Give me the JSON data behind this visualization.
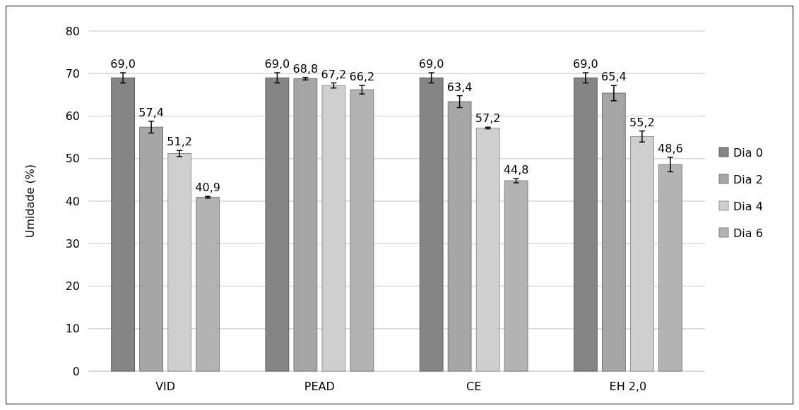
{
  "chart_data": {
    "type": "bar",
    "ylabel": "Umidade (%)",
    "categories": [
      "VID",
      "PEAD",
      "CE",
      "EH 2,0"
    ],
    "series": [
      {
        "name": "Dia 0",
        "color": "#858585",
        "values": [
          69.0,
          69.0,
          69.0,
          69.0
        ],
        "errors": [
          1.2,
          1.2,
          1.2,
          1.2
        ],
        "value_labels": [
          "69,0",
          "69,0",
          "69,0",
          "69,0"
        ]
      },
      {
        "name": "Dia 2",
        "color": "#a6a6a6",
        "values": [
          57.4,
          68.8,
          63.4,
          65.4
        ],
        "errors": [
          1.4,
          0.3,
          1.4,
          1.8
        ],
        "value_labels": [
          "57,4",
          "68,8",
          "63,4",
          "65,4"
        ]
      },
      {
        "name": "Dia 4",
        "color": "#cfcfcf",
        "values": [
          51.2,
          67.2,
          57.2,
          55.2
        ],
        "errors": [
          0.7,
          0.6,
          0.2,
          1.3
        ],
        "value_labels": [
          "51,2",
          "67,2",
          "57,2",
          "55,2"
        ]
      },
      {
        "name": "Dia 6",
        "color": "#b3b3b3",
        "values": [
          40.9,
          66.2,
          44.8,
          48.6
        ],
        "errors": [
          0.2,
          1.0,
          0.5,
          1.7
        ],
        "value_labels": [
          "40,9",
          "66,2",
          "44,8",
          "48,6"
        ]
      }
    ],
    "ylim": [
      0,
      80
    ],
    "yticks": [
      0,
      10,
      20,
      30,
      40,
      50,
      60,
      70,
      80
    ],
    "grid": "y",
    "legend": "right"
  }
}
